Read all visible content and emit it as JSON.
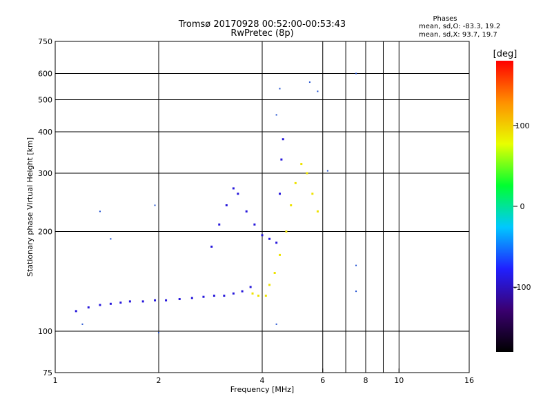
{
  "chart_data": {
    "type": "scatter",
    "title": "Tromsø 20170928 00:52:00-00:53:43",
    "subtitle": "RwPretec (8p)",
    "xlabel": "Frequency [MHz]",
    "ylabel": "Stationary phase Virtual Height [km]",
    "x_scale": "log2",
    "y_scale": "log",
    "xlim": [
      1,
      16
    ],
    "ylim": [
      75,
      750
    ],
    "x_ticks": [
      1,
      2,
      4,
      6,
      8,
      10,
      16
    ],
    "y_ticks": [
      75,
      100,
      200,
      300,
      400,
      500,
      600,
      750
    ],
    "x_grid_lines": [
      2,
      4,
      6,
      7,
      8,
      9,
      10
    ],
    "y_grid_lines": [
      100,
      200,
      300,
      400,
      500,
      600
    ],
    "grid": true,
    "legend": {
      "title": "Phases",
      "lines": [
        "mean, sd,O: -83.3, 19.2",
        "mean, sd,X:  93.7, 19.7"
      ],
      "placement": "top-right"
    },
    "colorbar": {
      "label": "[deg]",
      "range": [
        -180,
        180
      ],
      "ticks": [
        100,
        0,
        -100
      ],
      "colors": [
        "#000000",
        "#3a0070",
        "#2020ff",
        "#00c8ff",
        "#00ff30",
        "#e8ff00",
        "#ff9000",
        "#ff0000"
      ]
    },
    "series": [
      {
        "name": "O",
        "color_deg": -90,
        "points": [
          [
            1.15,
            115
          ],
          [
            1.25,
            118
          ],
          [
            1.35,
            120
          ],
          [
            1.45,
            121
          ],
          [
            1.55,
            122
          ],
          [
            1.65,
            123
          ],
          [
            1.8,
            123
          ],
          [
            1.95,
            124
          ],
          [
            2.1,
            124
          ],
          [
            2.3,
            125
          ],
          [
            2.5,
            126
          ],
          [
            2.7,
            127
          ],
          [
            2.9,
            128
          ],
          [
            3.1,
            128
          ],
          [
            3.3,
            130
          ],
          [
            3.5,
            132
          ],
          [
            3.7,
            136
          ],
          [
            2.85,
            180
          ],
          [
            3.0,
            210
          ],
          [
            3.15,
            240
          ],
          [
            3.3,
            270
          ],
          [
            3.4,
            260
          ],
          [
            3.6,
            230
          ],
          [
            3.8,
            210
          ],
          [
            4.0,
            195
          ],
          [
            4.2,
            190
          ],
          [
            4.4,
            185
          ],
          [
            4.5,
            260
          ],
          [
            4.55,
            330
          ],
          [
            4.6,
            380
          ]
        ]
      },
      {
        "name": "X",
        "color_deg": 90,
        "points": [
          [
            3.75,
            130
          ],
          [
            3.9,
            128
          ],
          [
            4.1,
            128
          ],
          [
            4.2,
            138
          ],
          [
            4.35,
            150
          ],
          [
            4.5,
            170
          ],
          [
            4.7,
            200
          ],
          [
            4.85,
            240
          ],
          [
            5.0,
            280
          ],
          [
            5.2,
            320
          ],
          [
            5.4,
            300
          ],
          [
            5.6,
            260
          ],
          [
            5.8,
            230
          ]
        ]
      }
    ],
    "outliers": [
      [
        1.2,
        105
      ],
      [
        1.35,
        230
      ],
      [
        1.45,
        190
      ],
      [
        1.95,
        240
      ],
      [
        2.0,
        99
      ],
      [
        4.5,
        540
      ],
      [
        5.5,
        565
      ],
      [
        5.8,
        530
      ],
      [
        6.2,
        305
      ],
      [
        7.5,
        600
      ],
      [
        7.5,
        158
      ],
      [
        7.5,
        132
      ],
      [
        4.4,
        450
      ],
      [
        4.4,
        105
      ]
    ]
  }
}
